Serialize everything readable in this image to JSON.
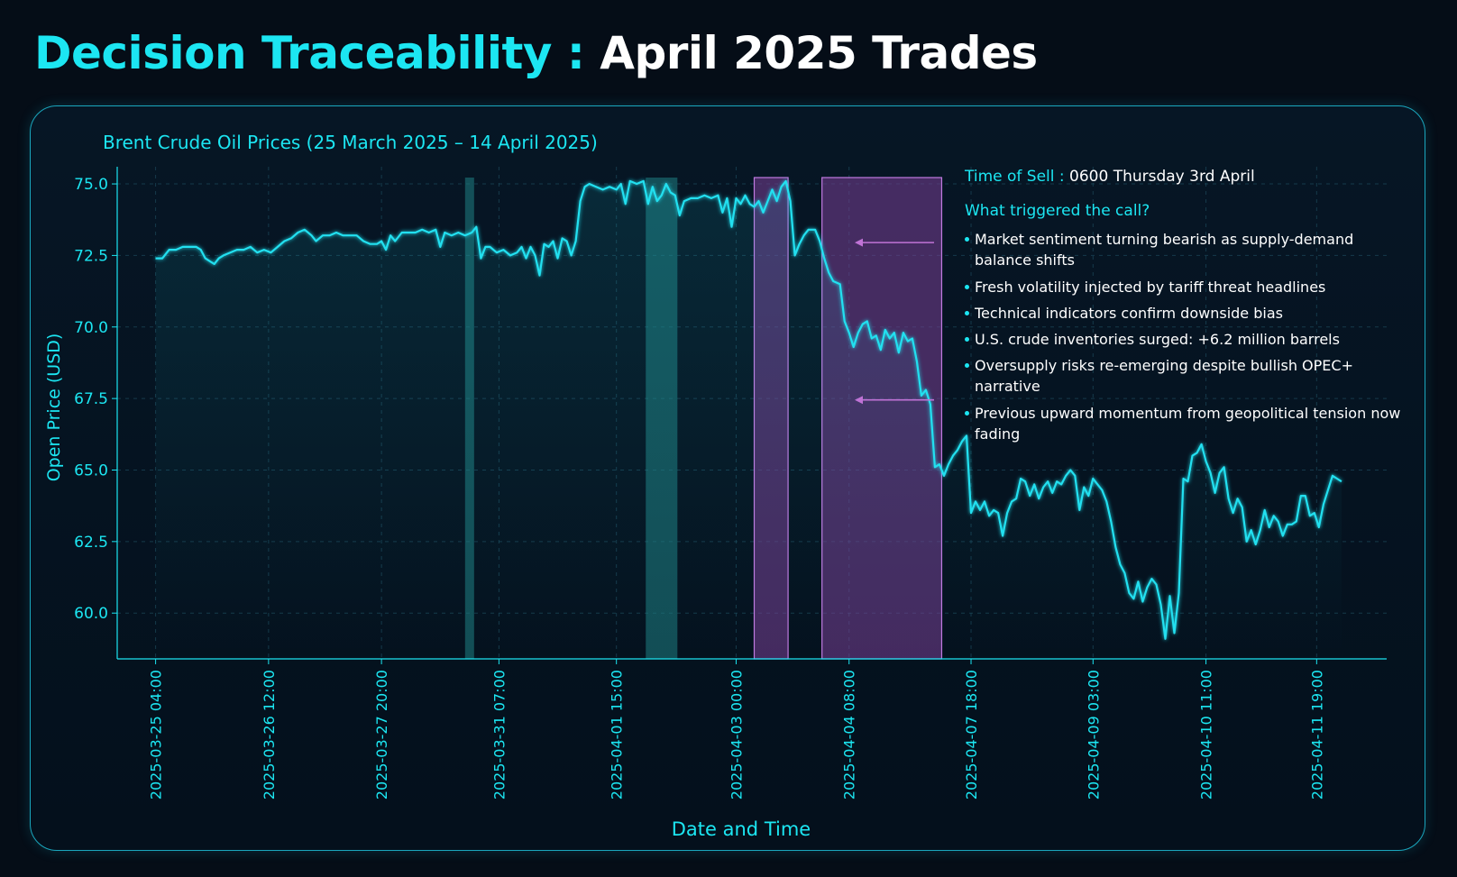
{
  "header": {
    "title_accent": "Decision Traceability :",
    "title_rest": "April 2025 Trades"
  },
  "annotation": {
    "time_label": "Time of Sell :",
    "time_value": "0600 Thursday 3rd April",
    "question": "What triggered the call?",
    "bullets": [
      "Market sentiment turning bearish as supply-demand balance shifts",
      "Fresh volatility injected by tariff threat headlines",
      "Technical indicators confirm downside bias",
      "U.S. crude inventories surged: +6.2 million barrels",
      "Oversupply risks re-emerging despite bullish OPEC+ narrative",
      "Previous upward momentum from geopolitical tension now fading"
    ]
  },
  "colors": {
    "accent": "#1ce6f2",
    "line": "#22e0f0",
    "teal_band": "#1f7f84",
    "purple_band": "#7a3f96",
    "purple_border": "#c07ae0",
    "arrow": "#c073d6"
  },
  "chart_data": {
    "type": "line",
    "title": "Brent Crude Oil Prices (25 March 2025 – 14 April 2025)",
    "xlabel": "Date and Time",
    "ylabel": "Open Price (USD)",
    "x_range": [
      -1.7,
      54.5
    ],
    "ylim": [
      58.4,
      75.6
    ],
    "y_ticks": [
      60.0,
      62.5,
      65.0,
      67.5,
      70.0,
      72.5,
      75.0
    ],
    "x_ticks": [
      {
        "i": 0,
        "label": "2025-03-25 04:00"
      },
      {
        "i": 5,
        "label": "2025-03-26 12:00"
      },
      {
        "i": 10,
        "label": "2025-03-27 20:00"
      },
      {
        "i": 15.2,
        "label": "2025-03-31 07:00"
      },
      {
        "i": 20.4,
        "label": "2025-04-01 15:00"
      },
      {
        "i": 25.7,
        "label": "2025-04-03 00:00"
      },
      {
        "i": 30.7,
        "label": "2025-04-04 08:00"
      },
      {
        "i": 36.1,
        "label": "2025-04-07 18:00"
      },
      {
        "i": 41.5,
        "label": "2025-04-09 03:00"
      },
      {
        "i": 46.5,
        "label": "2025-04-10 11:00"
      },
      {
        "i": 51.4,
        "label": "2025-04-11 19:00"
      }
    ],
    "grid": true,
    "series": [
      {
        "points": [
          [
            0,
            72.4
          ],
          [
            0.3,
            72.4
          ],
          [
            0.6,
            72.7
          ],
          [
            0.9,
            72.7
          ],
          [
            1.2,
            72.8
          ],
          [
            1.5,
            72.8
          ],
          [
            1.8,
            72.8
          ],
          [
            2.0,
            72.7
          ],
          [
            2.2,
            72.4
          ],
          [
            2.4,
            72.3
          ],
          [
            2.6,
            72.2
          ],
          [
            2.8,
            72.4
          ],
          [
            3.0,
            72.5
          ],
          [
            3.3,
            72.6
          ],
          [
            3.6,
            72.7
          ],
          [
            3.9,
            72.7
          ],
          [
            4.2,
            72.8
          ],
          [
            4.5,
            72.6
          ],
          [
            4.8,
            72.7
          ],
          [
            5.1,
            72.6
          ],
          [
            5.4,
            72.8
          ],
          [
            5.7,
            73.0
          ],
          [
            6.0,
            73.1
          ],
          [
            6.3,
            73.3
          ],
          [
            6.6,
            73.4
          ],
          [
            6.9,
            73.2
          ],
          [
            7.1,
            73.0
          ],
          [
            7.4,
            73.2
          ],
          [
            7.7,
            73.2
          ],
          [
            8.0,
            73.3
          ],
          [
            8.3,
            73.2
          ],
          [
            8.6,
            73.2
          ],
          [
            8.9,
            73.2
          ],
          [
            9.2,
            73.0
          ],
          [
            9.5,
            72.9
          ],
          [
            9.8,
            72.9
          ],
          [
            10.0,
            73.0
          ],
          [
            10.2,
            72.7
          ],
          [
            10.4,
            73.2
          ],
          [
            10.6,
            73.0
          ],
          [
            10.9,
            73.3
          ],
          [
            11.2,
            73.3
          ],
          [
            11.5,
            73.3
          ],
          [
            11.8,
            73.4
          ],
          [
            12.1,
            73.3
          ],
          [
            12.4,
            73.4
          ],
          [
            12.6,
            72.8
          ],
          [
            12.8,
            73.3
          ],
          [
            13.1,
            73.2
          ],
          [
            13.4,
            73.3
          ],
          [
            13.7,
            73.2
          ],
          [
            14.0,
            73.3
          ],
          [
            14.2,
            73.5
          ],
          [
            14.4,
            72.4
          ],
          [
            14.6,
            72.8
          ],
          [
            14.8,
            72.8
          ],
          [
            15.1,
            72.6
          ],
          [
            15.4,
            72.7
          ],
          [
            15.7,
            72.5
          ],
          [
            16.0,
            72.6
          ],
          [
            16.2,
            72.8
          ],
          [
            16.4,
            72.4
          ],
          [
            16.6,
            72.8
          ],
          [
            16.8,
            72.5
          ],
          [
            17.0,
            71.8
          ],
          [
            17.2,
            72.9
          ],
          [
            17.4,
            72.8
          ],
          [
            17.6,
            73.0
          ],
          [
            17.8,
            72.4
          ],
          [
            18.0,
            73.1
          ],
          [
            18.2,
            73.0
          ],
          [
            18.4,
            72.5
          ],
          [
            18.6,
            73.0
          ],
          [
            18.8,
            74.4
          ],
          [
            19.0,
            74.9
          ],
          [
            19.2,
            75.0
          ],
          [
            19.5,
            74.9
          ],
          [
            19.8,
            74.8
          ],
          [
            20.1,
            74.9
          ],
          [
            20.4,
            74.8
          ],
          [
            20.6,
            75.0
          ],
          [
            20.8,
            74.3
          ],
          [
            21.0,
            75.1
          ],
          [
            21.3,
            75.0
          ],
          [
            21.6,
            75.1
          ],
          [
            21.8,
            74.3
          ],
          [
            22.0,
            74.9
          ],
          [
            22.2,
            74.4
          ],
          [
            22.4,
            74.6
          ],
          [
            22.6,
            75.0
          ],
          [
            22.8,
            74.7
          ],
          [
            23.0,
            74.6
          ],
          [
            23.2,
            73.9
          ],
          [
            23.4,
            74.4
          ],
          [
            23.7,
            74.5
          ],
          [
            24.0,
            74.5
          ],
          [
            24.3,
            74.6
          ],
          [
            24.6,
            74.5
          ],
          [
            24.9,
            74.6
          ],
          [
            25.1,
            74.0
          ],
          [
            25.3,
            74.5
          ],
          [
            25.5,
            73.5
          ],
          [
            25.7,
            74.5
          ],
          [
            25.9,
            74.3
          ],
          [
            26.1,
            74.6
          ],
          [
            26.3,
            74.3
          ],
          [
            26.5,
            74.2
          ],
          [
            26.7,
            74.4
          ],
          [
            26.9,
            74.0
          ],
          [
            27.1,
            74.4
          ],
          [
            27.3,
            74.8
          ],
          [
            27.5,
            74.4
          ],
          [
            27.7,
            74.9
          ],
          [
            27.9,
            75.1
          ],
          [
            28.1,
            74.4
          ],
          [
            28.3,
            72.5
          ],
          [
            28.5,
            72.9
          ],
          [
            28.7,
            73.2
          ],
          [
            28.9,
            73.4
          ],
          [
            29.2,
            73.4
          ],
          [
            29.4,
            73.0
          ],
          [
            29.6,
            72.4
          ],
          [
            29.8,
            71.9
          ],
          [
            30.0,
            71.6
          ],
          [
            30.3,
            71.5
          ],
          [
            30.5,
            70.2
          ],
          [
            30.7,
            69.8
          ],
          [
            30.9,
            69.3
          ],
          [
            31.1,
            69.8
          ],
          [
            31.3,
            70.1
          ],
          [
            31.5,
            70.2
          ],
          [
            31.7,
            69.6
          ],
          [
            31.9,
            69.7
          ],
          [
            32.1,
            69.2
          ],
          [
            32.3,
            69.9
          ],
          [
            32.5,
            69.6
          ],
          [
            32.7,
            69.8
          ],
          [
            32.9,
            69.1
          ],
          [
            33.1,
            69.8
          ],
          [
            33.3,
            69.5
          ],
          [
            33.5,
            69.6
          ],
          [
            33.7,
            68.8
          ],
          [
            33.9,
            67.6
          ],
          [
            34.1,
            67.8
          ],
          [
            34.3,
            67.3
          ],
          [
            34.5,
            65.1
          ],
          [
            34.7,
            65.2
          ],
          [
            34.9,
            64.8
          ],
          [
            35.1,
            65.2
          ],
          [
            35.3,
            65.5
          ],
          [
            35.5,
            65.7
          ],
          [
            35.7,
            66.0
          ],
          [
            35.9,
            66.2
          ],
          [
            36.1,
            63.5
          ],
          [
            36.3,
            63.9
          ],
          [
            36.5,
            63.6
          ],
          [
            36.7,
            63.9
          ],
          [
            36.9,
            63.4
          ],
          [
            37.1,
            63.6
          ],
          [
            37.3,
            63.5
          ],
          [
            37.5,
            62.7
          ],
          [
            37.7,
            63.5
          ],
          [
            37.9,
            63.9
          ],
          [
            38.1,
            64.0
          ],
          [
            38.3,
            64.7
          ],
          [
            38.5,
            64.6
          ],
          [
            38.7,
            64.1
          ],
          [
            38.9,
            64.5
          ],
          [
            39.1,
            64.0
          ],
          [
            39.3,
            64.4
          ],
          [
            39.5,
            64.6
          ],
          [
            39.7,
            64.2
          ],
          [
            39.9,
            64.6
          ],
          [
            40.1,
            64.5
          ],
          [
            40.3,
            64.8
          ],
          [
            40.5,
            65.0
          ],
          [
            40.7,
            64.8
          ],
          [
            40.9,
            63.6
          ],
          [
            41.1,
            64.4
          ],
          [
            41.3,
            64.1
          ],
          [
            41.5,
            64.7
          ],
          [
            41.7,
            64.5
          ],
          [
            41.9,
            64.3
          ],
          [
            42.1,
            63.9
          ],
          [
            42.3,
            63.2
          ],
          [
            42.5,
            62.3
          ],
          [
            42.7,
            61.7
          ],
          [
            42.9,
            61.4
          ],
          [
            43.1,
            60.7
          ],
          [
            43.3,
            60.5
          ],
          [
            43.5,
            61.1
          ],
          [
            43.7,
            60.4
          ],
          [
            43.9,
            60.9
          ],
          [
            44.1,
            61.2
          ],
          [
            44.3,
            61.0
          ],
          [
            44.5,
            60.3
          ],
          [
            44.7,
            59.1
          ],
          [
            44.9,
            60.6
          ],
          [
            45.1,
            59.3
          ],
          [
            45.3,
            60.7
          ],
          [
            45.5,
            64.7
          ],
          [
            45.7,
            64.6
          ],
          [
            45.9,
            65.5
          ],
          [
            46.1,
            65.6
          ],
          [
            46.3,
            65.9
          ],
          [
            46.5,
            65.3
          ],
          [
            46.7,
            64.9
          ],
          [
            46.9,
            64.2
          ],
          [
            47.1,
            64.9
          ],
          [
            47.3,
            65.1
          ],
          [
            47.5,
            64.0
          ],
          [
            47.7,
            63.5
          ],
          [
            47.9,
            64.0
          ],
          [
            48.1,
            63.7
          ],
          [
            48.3,
            62.5
          ],
          [
            48.5,
            62.9
          ],
          [
            48.7,
            62.4
          ],
          [
            48.9,
            62.9
          ],
          [
            49.1,
            63.6
          ],
          [
            49.3,
            63.0
          ],
          [
            49.5,
            63.4
          ],
          [
            49.7,
            63.2
          ],
          [
            49.9,
            62.7
          ],
          [
            50.1,
            63.1
          ],
          [
            50.3,
            63.1
          ],
          [
            50.5,
            63.2
          ],
          [
            50.7,
            64.1
          ],
          [
            50.9,
            64.1
          ],
          [
            51.1,
            63.4
          ],
          [
            51.3,
            63.5
          ],
          [
            51.5,
            63.0
          ],
          [
            51.7,
            63.8
          ],
          [
            51.9,
            64.3
          ],
          [
            52.1,
            64.8
          ],
          [
            52.3,
            64.7
          ],
          [
            52.5,
            64.6
          ]
        ]
      }
    ],
    "highlight_bands": [
      {
        "kind": "teal",
        "x_start": 13.7,
        "x_end": 14.1
      },
      {
        "kind": "teal",
        "x_start": 21.7,
        "x_end": 23.1
      },
      {
        "kind": "purple",
        "x_start": 26.5,
        "x_end": 28.0
      },
      {
        "kind": "purple",
        "x_start": 29.5,
        "x_end": 34.8
      }
    ],
    "annotation_arrows": [
      {
        "y": 72.95
      },
      {
        "y": 67.45
      }
    ]
  }
}
